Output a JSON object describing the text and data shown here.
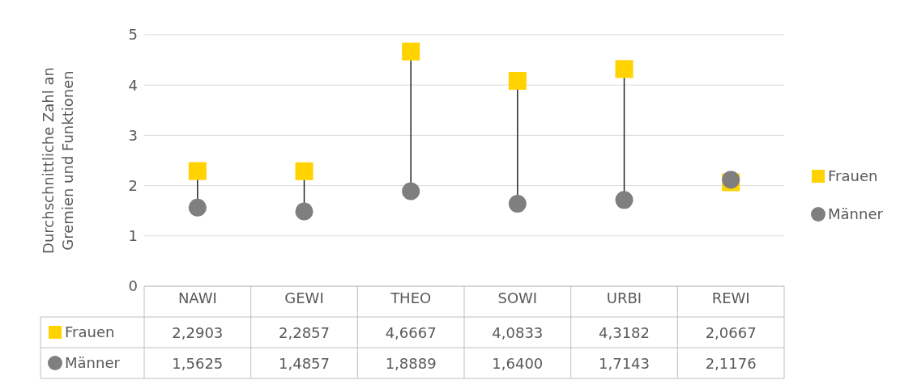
{
  "chart_data": {
    "type": "scatter",
    "ylabel": "Durchschnittliche Zahl an Gremien und Funktionen",
    "categories": [
      "NAWI",
      "GEWI",
      "THEO",
      "SOWI",
      "URBI",
      "REWI"
    ],
    "series": [
      {
        "name": "Frauen",
        "color": "#ffd200",
        "marker": "square",
        "values": [
          2.2903,
          2.2857,
          4.6667,
          4.0833,
          4.3182,
          2.0667
        ],
        "value_labels": [
          "2,2903",
          "2,2857",
          "4,6667",
          "4,0833",
          "4,3182",
          "2,0667"
        ]
      },
      {
        "name": "Männer",
        "color": "#7f7f7f",
        "marker": "circle",
        "values": [
          1.5625,
          1.4857,
          1.8889,
          1.64,
          1.7143,
          2.1176
        ],
        "value_labels": [
          "1,5625",
          "1,4857",
          "1,8889",
          "1,6400",
          "1,7143",
          "2,1176"
        ]
      }
    ],
    "ylim": [
      0,
      5
    ],
    "yticks": [
      0,
      1,
      2,
      3,
      4,
      5
    ],
    "grid": "y",
    "legend": "right"
  }
}
